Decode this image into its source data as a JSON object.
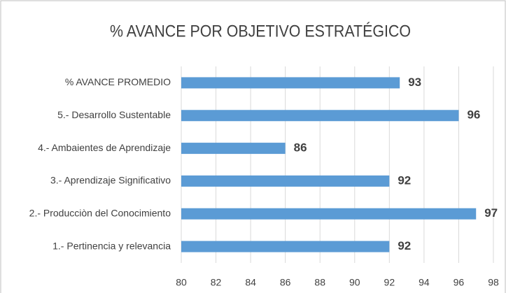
{
  "chart_data": {
    "type": "bar",
    "orientation": "horizontal",
    "title": "% AVANCE POR OBJETIVO ESTRATÉGICO",
    "categories": [
      "% AVANCE PROMEDIO",
      "5.- Desarrollo Sustentable",
      "4.- Ambaientes de Aprendizaje",
      "3.- Aprendizaje Significativo",
      "2.- Producciòn del Conocimiento",
      "1.- Pertinencia y relevancia"
    ],
    "values": [
      92.6,
      96,
      86,
      92,
      97,
      92
    ],
    "value_labels": [
      "93",
      "96",
      "86",
      "92",
      "97",
      "92"
    ],
    "color": "#5b9bd5",
    "xlim": [
      80,
      98
    ],
    "xticks": [
      80,
      82,
      84,
      86,
      88,
      90,
      92,
      94,
      96,
      98
    ],
    "grid": true
  }
}
